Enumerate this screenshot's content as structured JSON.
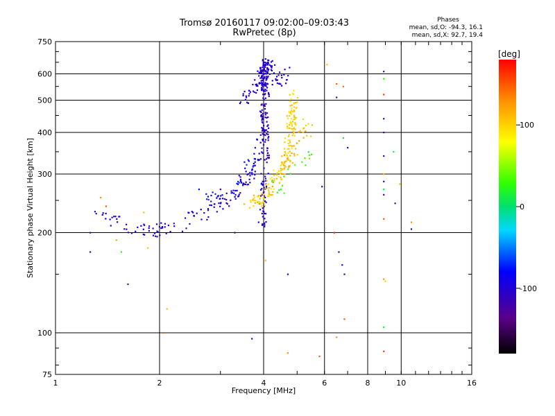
{
  "title_line1": "Tromsø 20160117 09:02:00–09:03:43",
  "title_line2": "RwPretec (8p)",
  "phases": {
    "heading": "Phases",
    "o_line": "mean, sd,O:  -94.3, 16.1",
    "x_line": "mean, sd,X:   92.7, 19.4"
  },
  "chart_data": {
    "type": "scatter",
    "xlabel": "Frequency [MHz]",
    "ylabel": "Stationary phase Virtual Height [km]",
    "xscale": "log",
    "yscale": "log",
    "xlim": [
      1,
      16
    ],
    "ylim": [
      75,
      750
    ],
    "xticks": [
      1,
      2,
      4,
      6,
      8,
      10,
      16
    ],
    "yticks": [
      75,
      100,
      200,
      300,
      400,
      500,
      600,
      750
    ],
    "grid": true,
    "colorbar": {
      "label": "[deg]",
      "range": [
        -180,
        180
      ],
      "ticks": [
        -100,
        0,
        100
      ]
    },
    "traces": [
      {
        "x": [
          1.3,
          1.42,
          1.55,
          1.75,
          1.95,
          2.1,
          2.3,
          2.6,
          2.9,
          3.1,
          3.3,
          3.5,
          3.7,
          3.8,
          3.9,
          3.95
        ],
        "y": [
          235,
          225,
          210,
          203,
          203,
          205,
          210,
          225,
          240,
          250,
          262,
          280,
          300,
          330,
          360,
          400
        ],
        "phase": -100,
        "n": 140,
        "jx": 0.03,
        "jy": 0.05
      },
      {
        "x": [
          2.5,
          2.8,
          3.1,
          3.4,
          3.6,
          3.75
        ],
        "y": [
          230,
          245,
          262,
          282,
          305,
          330
        ],
        "phase": -80,
        "n": 40,
        "jx": 0.04,
        "jy": 0.06
      },
      {
        "x": [
          3.5,
          3.6,
          3.75,
          3.85,
          3.9,
          3.95
        ],
        "y": [
          505,
          520,
          540,
          560,
          590,
          630
        ],
        "phase": -100,
        "n": 40,
        "jx": 0.03,
        "jy": 0.04
      },
      {
        "x": [
          3.95,
          4.0,
          4.05,
          4.05,
          4.0,
          4.05,
          4.0,
          4.05,
          4.0
        ],
        "y": [
          200,
          260,
          320,
          400,
          460,
          530,
          600,
          650,
          560
        ],
        "phase": -105,
        "n": 230,
        "jx": 0.025,
        "jy": 0.05
      },
      {
        "x": [
          4.1,
          4.2,
          4.35,
          4.5,
          4.7
        ],
        "y": [
          650,
          620,
          580,
          560,
          620
        ],
        "phase": -100,
        "n": 40,
        "jx": 0.03,
        "jy": 0.04
      },
      {
        "x": [
          3.6,
          3.9,
          4.1,
          4.3,
          4.5,
          4.65,
          4.75,
          4.8,
          4.85,
          4.9
        ],
        "y": [
          238,
          250,
          265,
          285,
          310,
          340,
          380,
          420,
          470,
          520
        ],
        "phase": 100,
        "n": 170,
        "jx": 0.03,
        "jy": 0.05
      },
      {
        "x": [
          4.3,
          4.5,
          4.7,
          4.9,
          5.1,
          5.4
        ],
        "y": [
          280,
          305,
          330,
          360,
          390,
          420
        ],
        "phase": 110,
        "n": 45,
        "jx": 0.04,
        "jy": 0.06
      },
      {
        "x": [
          4.4,
          4.6,
          4.9,
          5.2,
          5.6
        ],
        "y": [
          270,
          290,
          320,
          340,
          330
        ],
        "phase": 30,
        "n": 18,
        "jx": 0.05,
        "jy": 0.06
      }
    ],
    "sparse": [
      {
        "x": 1.26,
        "y": 175,
        "phase": -120
      },
      {
        "x": 1.26,
        "y": 200,
        "phase": -100
      },
      {
        "x": 1.35,
        "y": 255,
        "phase": 130
      },
      {
        "x": 1.4,
        "y": 240,
        "phase": 150
      },
      {
        "x": 1.5,
        "y": 190,
        "phase": 120
      },
      {
        "x": 1.55,
        "y": 175,
        "phase": 20
      },
      {
        "x": 1.62,
        "y": 140,
        "phase": -130
      },
      {
        "x": 1.8,
        "y": 230,
        "phase": 110
      },
      {
        "x": 1.85,
        "y": 180,
        "phase": 110
      },
      {
        "x": 2.05,
        "y": 100,
        "phase": 150
      },
      {
        "x": 2.1,
        "y": 118,
        "phase": 110
      },
      {
        "x": 2.6,
        "y": 270,
        "phase": -80
      },
      {
        "x": 3.0,
        "y": 270,
        "phase": -100
      },
      {
        "x": 3.3,
        "y": 200,
        "phase": -100
      },
      {
        "x": 3.7,
        "y": 96,
        "phase": -90
      },
      {
        "x": 4.05,
        "y": 165,
        "phase": 110
      },
      {
        "x": 4.7,
        "y": 150,
        "phase": -110
      },
      {
        "x": 4.7,
        "y": 87,
        "phase": 130
      },
      {
        "x": 5.3,
        "y": 420,
        "phase": 100
      },
      {
        "x": 5.8,
        "y": 85,
        "phase": 150
      },
      {
        "x": 5.9,
        "y": 275,
        "phase": -110
      },
      {
        "x": 6.1,
        "y": 640,
        "phase": 110
      },
      {
        "x": 6.4,
        "y": 200,
        "phase": 170
      },
      {
        "x": 6.5,
        "y": 510,
        "phase": -110
      },
      {
        "x": 6.5,
        "y": 560,
        "phase": 150
      },
      {
        "x": 6.6,
        "y": 175,
        "phase": -110
      },
      {
        "x": 6.5,
        "y": 97,
        "phase": 130
      },
      {
        "x": 6.75,
        "y": 160,
        "phase": -100
      },
      {
        "x": 6.8,
        "y": 385,
        "phase": 10
      },
      {
        "x": 6.8,
        "y": 550,
        "phase": 140
      },
      {
        "x": 6.85,
        "y": 150,
        "phase": -110
      },
      {
        "x": 6.85,
        "y": 110,
        "phase": 150
      },
      {
        "x": 7.0,
        "y": 360,
        "phase": -110
      },
      {
        "x": 8.9,
        "y": 610,
        "phase": -110
      },
      {
        "x": 8.9,
        "y": 580,
        "phase": 30
      },
      {
        "x": 8.9,
        "y": 520,
        "phase": 160
      },
      {
        "x": 8.9,
        "y": 440,
        "phase": -110
      },
      {
        "x": 8.9,
        "y": 400,
        "phase": -120
      },
      {
        "x": 8.9,
        "y": 340,
        "phase": -110
      },
      {
        "x": 8.9,
        "y": 300,
        "phase": 120
      },
      {
        "x": 8.9,
        "y": 285,
        "phase": -110
      },
      {
        "x": 8.9,
        "y": 270,
        "phase": 10
      },
      {
        "x": 8.9,
        "y": 260,
        "phase": -120
      },
      {
        "x": 8.9,
        "y": 220,
        "phase": 150
      },
      {
        "x": 8.9,
        "y": 145,
        "phase": 130
      },
      {
        "x": 9.0,
        "y": 143,
        "phase": 100
      },
      {
        "x": 8.9,
        "y": 104,
        "phase": 10
      },
      {
        "x": 8.9,
        "y": 88,
        "phase": 160
      },
      {
        "x": 9.5,
        "y": 350,
        "phase": 10
      },
      {
        "x": 9.6,
        "y": 245,
        "phase": -120
      },
      {
        "x": 9.9,
        "y": 280,
        "phase": 110
      },
      {
        "x": 10.7,
        "y": 215,
        "phase": 130
      },
      {
        "x": 10.7,
        "y": 205,
        "phase": -110
      }
    ]
  }
}
